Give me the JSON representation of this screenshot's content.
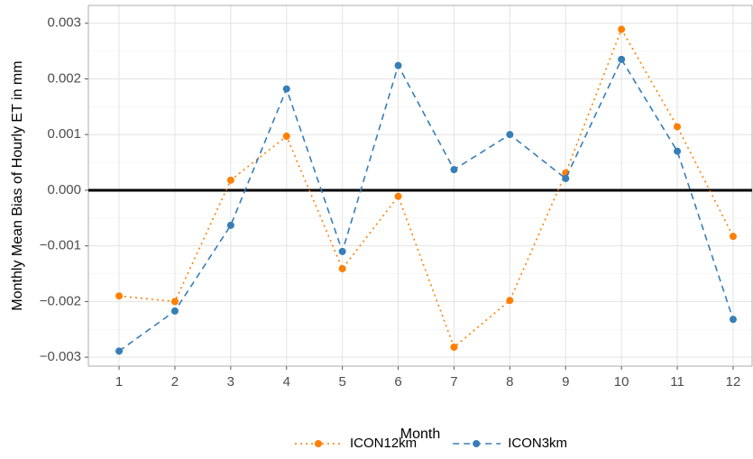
{
  "chart_data": {
    "type": "line",
    "xlabel": "Month",
    "ylabel": "Monthly Mean Bias of Hourly ET in mm",
    "x": [
      1,
      2,
      3,
      4,
      5,
      6,
      7,
      8,
      9,
      10,
      11,
      12
    ],
    "series": [
      {
        "name": "ICON12km",
        "color": "#ff7f00",
        "linestyle": "dotted",
        "values": [
          -0.0019,
          -0.002,
          0.00018,
          0.00097,
          -0.00141,
          -0.00011,
          -0.00282,
          -0.00198,
          0.00031,
          0.00289,
          0.00114,
          -0.00083
        ]
      },
      {
        "name": "ICON3km",
        "color": "#377eb8",
        "linestyle": "dashed",
        "values": [
          -0.00289,
          -0.00217,
          -0.00063,
          0.00182,
          -0.0011,
          0.00224,
          0.00037,
          0.001,
          0.00021,
          0.00235,
          0.0007,
          -0.00232
        ]
      }
    ],
    "xlim": [
      0.45,
      12.34
    ],
    "ylim": [
      -0.00316,
      0.00332
    ],
    "xticks": [
      1,
      2,
      3,
      4,
      5,
      6,
      7,
      8,
      9,
      10,
      11,
      12
    ],
    "yticks": [
      {
        "value": -0.003,
        "label": "−0.003"
      },
      {
        "value": -0.002,
        "label": "−0.002"
      },
      {
        "value": -0.001,
        "label": "−0.001"
      },
      {
        "value": 0,
        "label": "0.000"
      },
      {
        "value": 0.001,
        "label": "0.001"
      },
      {
        "value": 0.002,
        "label": "0.002"
      },
      {
        "value": 0.003,
        "label": "0.003"
      }
    ],
    "reference_line": 0,
    "grid": true,
    "legend": "bottom"
  }
}
